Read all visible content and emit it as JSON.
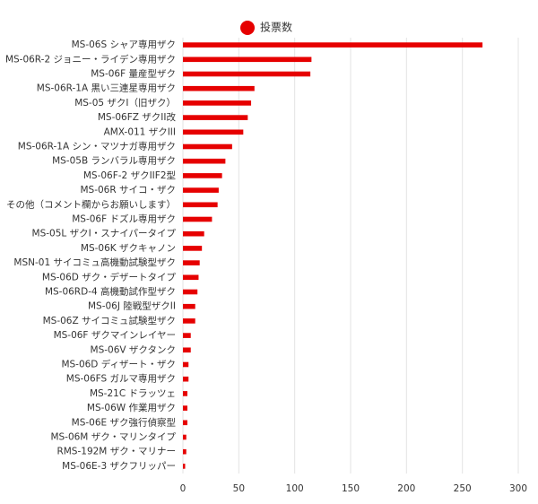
{
  "chart_data": {
    "type": "barh",
    "legend": "投票数",
    "color": "#e60000",
    "categories": [
      "MS-06S シャア専用ザク",
      "MS-06R-2 ジョニー・ライデン専用ザク",
      "MS-06F 量産型ザク",
      "MS-06R-1A 黒い三連星専用ザク",
      "MS-05 ザクI（旧ザク）",
      "MS-06FZ ザクII改",
      "AMX-011 ザクIII",
      "MS-06R-1A シン・マツナガ専用ザク",
      "MS-05B ランバラル専用ザク",
      "MS-06F-2 ザクIIF2型",
      "MS-06R サイコ・ザク",
      "その他（コメント欄からお願いします）",
      "MS-06F ドズル専用ザク",
      "MS-05L ザクI・スナイパータイプ",
      "MS-06K ザクキャノン",
      "MSN-01 サイコミュ高機動試験型ザク",
      "MS-06D ザク・デザートタイプ",
      "MS-06RD-4 高機動試作型ザク",
      "MS-06J 陸戦型ザクII",
      "MS-06Z サイコミュ試験型ザク",
      "MS-06F ザクマインレイヤー",
      "MS-06V ザクタンク",
      "MS-06D ディザート・ザク",
      "MS-06FS ガルマ専用ザク",
      "MS-21C ドラッツェ",
      "MS-06W 作業用ザク",
      "MS-06E ザク強行偵察型",
      "MS-06M ザク・マリンタイプ",
      "RMS-192M ザク・マリナー",
      "MS-06E-3 ザクフリッパー"
    ],
    "values": [
      268,
      115,
      114,
      64,
      61,
      58,
      54,
      44,
      38,
      35,
      32,
      31,
      26,
      19,
      17,
      15,
      14,
      13,
      11,
      11,
      7,
      7,
      5,
      5,
      4,
      4,
      4,
      3,
      3,
      2
    ],
    "xlim": [
      0,
      300
    ],
    "xticks": [
      0,
      50,
      100,
      150,
      200,
      250,
      300
    ],
    "grid": true
  }
}
